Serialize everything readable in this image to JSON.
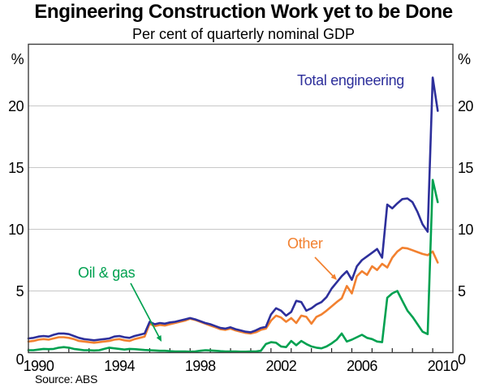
{
  "header": {
    "title": "Engineering Construction Work yet to be Done",
    "subtitle": "Per cent of quarterly nominal GDP"
  },
  "footer": {
    "source": "Source: ABS"
  },
  "chart_data": {
    "type": "line",
    "title": "Engineering Construction Work yet to be Done",
    "subtitle": "Per cent of quarterly nominal GDP",
    "ylabel_left": "%",
    "ylabel_right": "%",
    "ylim": [
      0,
      25
    ],
    "yticks": [
      0,
      5,
      10,
      15,
      20
    ],
    "grid": "horizontal gridlines at labelled ticks, both-side y labels",
    "x_year_range": [
      1990,
      2011
    ],
    "x_tick_years": [
      1990,
      1994,
      1998,
      2002,
      2006,
      2010
    ],
    "x_minor_tick_every_years": 1,
    "x_first_quarter": "1989Q4",
    "x_last_quarter": "2010Q1",
    "x_plot_start": 1990.0,
    "x_step_years": 0.25,
    "legend_position": "inline colored annotations",
    "frame_color": "#404040",
    "gridline_color": "#c8c8c8",
    "series": [
      {
        "name": "Total engineering",
        "color": "#2d2f9b",
        "values": [
          1.15,
          1.2,
          1.3,
          1.35,
          1.3,
          1.45,
          1.55,
          1.55,
          1.5,
          1.35,
          1.2,
          1.1,
          1.05,
          1.0,
          1.05,
          1.1,
          1.15,
          1.3,
          1.35,
          1.25,
          1.2,
          1.35,
          1.45,
          1.55,
          2.5,
          2.3,
          2.4,
          2.35,
          2.45,
          2.5,
          2.6,
          2.7,
          2.8,
          2.7,
          2.55,
          2.4,
          2.3,
          2.15,
          2.0,
          1.95,
          2.05,
          1.9,
          1.8,
          1.7,
          1.65,
          1.8,
          2.0,
          2.1,
          3.1,
          3.6,
          3.4,
          3.0,
          3.3,
          4.2,
          4.1,
          3.4,
          3.6,
          3.9,
          4.1,
          4.5,
          5.2,
          5.7,
          6.2,
          6.6,
          5.9,
          7.0,
          7.5,
          7.8,
          8.1,
          8.4,
          7.7,
          12.0,
          11.7,
          12.1,
          12.45,
          12.5,
          12.2,
          11.4,
          10.4,
          9.8,
          22.3,
          19.6
        ]
      },
      {
        "name": "Other",
        "color": "#f28130",
        "values": [
          0.9,
          0.95,
          1.05,
          1.1,
          1.05,
          1.15,
          1.25,
          1.25,
          1.2,
          1.1,
          0.95,
          0.9,
          0.85,
          0.8,
          0.85,
          0.9,
          0.95,
          1.05,
          1.1,
          1.0,
          0.95,
          1.1,
          1.2,
          1.3,
          2.35,
          2.15,
          2.25,
          2.2,
          2.3,
          2.4,
          2.5,
          2.6,
          2.75,
          2.65,
          2.5,
          2.35,
          2.2,
          2.05,
          1.9,
          1.85,
          1.95,
          1.8,
          1.7,
          1.6,
          1.55,
          1.65,
          1.85,
          1.95,
          2.6,
          3.0,
          2.85,
          2.5,
          2.8,
          2.4,
          3.0,
          2.9,
          2.35,
          2.9,
          3.1,
          3.4,
          3.75,
          4.1,
          4.4,
          5.4,
          4.8,
          6.2,
          6.6,
          6.3,
          7.0,
          6.7,
          7.2,
          6.9,
          7.7,
          8.2,
          8.5,
          8.45,
          8.3,
          8.15,
          8.0,
          7.9,
          8.2,
          7.3
        ]
      },
      {
        "name": "Oil & gas",
        "color": "#00a150",
        "values": [
          0.2,
          0.2,
          0.25,
          0.3,
          0.28,
          0.3,
          0.4,
          0.45,
          0.4,
          0.3,
          0.25,
          0.2,
          0.2,
          0.18,
          0.2,
          0.3,
          0.4,
          0.35,
          0.3,
          0.25,
          0.3,
          0.28,
          0.25,
          0.22,
          0.2,
          0.18,
          0.15,
          0.15,
          0.12,
          0.1,
          0.1,
          0.1,
          0.08,
          0.1,
          0.15,
          0.2,
          0.18,
          0.15,
          0.12,
          0.1,
          0.1,
          0.1,
          0.08,
          0.08,
          0.1,
          0.1,
          0.15,
          0.7,
          0.85,
          0.8,
          0.5,
          0.45,
          0.95,
          0.6,
          0.95,
          0.7,
          0.5,
          0.4,
          0.35,
          0.5,
          0.75,
          1.05,
          1.55,
          0.9,
          1.05,
          1.25,
          1.45,
          1.2,
          1.1,
          0.9,
          0.85,
          4.45,
          4.8,
          5.0,
          4.2,
          3.4,
          2.9,
          2.3,
          1.7,
          1.5,
          14.0,
          12.2
        ]
      }
    ],
    "annotations": [
      {
        "text": "Total engineering",
        "color": "#2d2f9b",
        "arrow": null
      },
      {
        "text": "Other",
        "color": "#f28130",
        "arrow": [
          388,
          317,
          415,
          345
        ]
      },
      {
        "text": "Oil & gas",
        "color": "#00a150",
        "arrow": [
          161,
          349,
          199,
          421
        ]
      }
    ],
    "source": "Source: ABS"
  }
}
